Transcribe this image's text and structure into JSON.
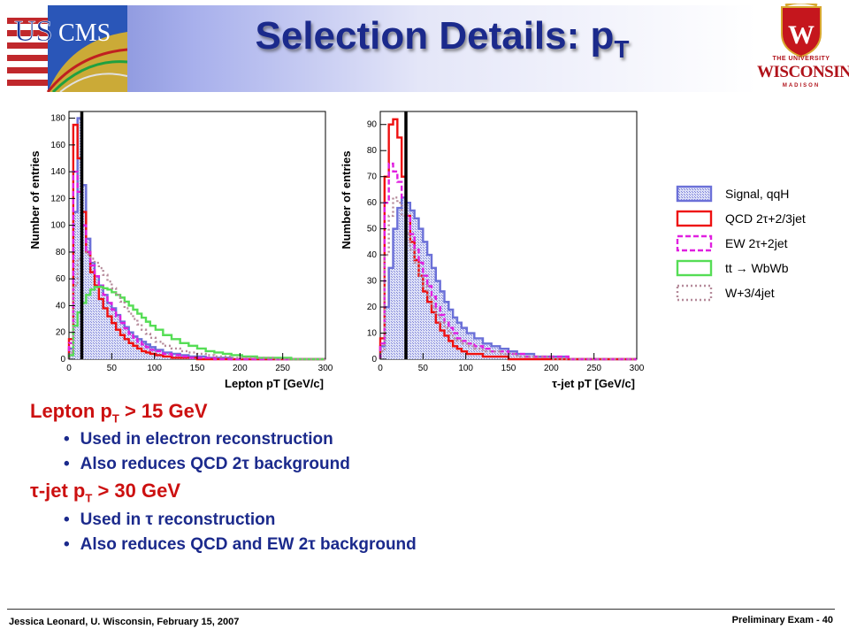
{
  "slide": {
    "title_main": "Selection Details: p",
    "title_sub": "T",
    "logo_left": "US CMS",
    "logo_right": {
      "line1": "THE UNIVERSITY",
      "line2": "WISCONSIN",
      "line3": "MADISON",
      "crest_letter": "W"
    }
  },
  "bullets": {
    "item1": {
      "text": "Lepton p",
      "sub": "T",
      "rest": " > 15 GeV"
    },
    "item1_sub1": "Used in electron reconstruction",
    "item1_sub2": "Also reduces QCD 2τ background",
    "item2": {
      "text": "τ-jet p",
      "sub": "T",
      "rest": " > 30 GeV"
    },
    "item2_sub1": "Used in τ reconstruction",
    "item2_sub2": "Also reduces QCD and EW 2τ background"
  },
  "footer": {
    "left": "Jessica Leonard, U. Wisconsin, February 15, 2007",
    "right": "Preliminary Exam -  40"
  },
  "colors": {
    "title": "#1b2a8c",
    "bullet_main": "#cc1010",
    "bullet_sub": "#1b2a8c",
    "signal": "#6b70d8",
    "qcd": "#ee1010",
    "ew": "#e020e0",
    "tt": "#55dd55",
    "w": "#b58a9a"
  },
  "chart_data": [
    {
      "type": "line",
      "xlabel": "Lepton p_T [GeV/c]",
      "ylabel": "Number of entries",
      "xlim": [
        0,
        300
      ],
      "ylim": [
        0,
        185
      ],
      "xticks": [
        0,
        50,
        100,
        150,
        200,
        250,
        300
      ],
      "yticks": [
        0,
        20,
        40,
        60,
        80,
        100,
        120,
        140,
        160,
        180
      ],
      "cut": 15,
      "x": [
        2.5,
        7.5,
        12.5,
        17.5,
        22.5,
        27.5,
        32.5,
        37.5,
        42.5,
        47.5,
        52.5,
        57.5,
        62.5,
        67.5,
        72.5,
        77.5,
        82.5,
        87.5,
        92.5,
        97.5,
        105,
        115,
        125,
        135,
        145,
        155,
        165,
        175,
        185,
        195,
        210,
        230,
        250,
        270,
        290
      ],
      "series": [
        {
          "name": "Signal, qqH",
          "values": [
            8,
            110,
            180,
            130,
            90,
            72,
            62,
            55,
            48,
            42,
            38,
            33,
            28,
            24,
            20,
            17,
            15,
            13,
            11,
            9,
            7,
            5,
            4,
            3,
            2,
            2,
            1,
            1,
            1,
            0,
            0,
            0,
            0,
            0,
            0
          ]
        },
        {
          "name": "QCD 2τ+2/3jet",
          "values": [
            15,
            175,
            150,
            110,
            80,
            65,
            55,
            45,
            38,
            32,
            27,
            22,
            18,
            15,
            12,
            10,
            8,
            6,
            5,
            4,
            3,
            2,
            1,
            1,
            1,
            0,
            0,
            0,
            0,
            0,
            0,
            0,
            0,
            0,
            0
          ]
        },
        {
          "name": "EW 2τ+2jet",
          "values": [
            12,
            140,
            125,
            100,
            80,
            70,
            62,
            55,
            48,
            42,
            37,
            32,
            27,
            23,
            19,
            16,
            13,
            11,
            9,
            7,
            6,
            4,
            3,
            2,
            1,
            1,
            1,
            0,
            0,
            0,
            0,
            0,
            0,
            0,
            0
          ]
        },
        {
          "name": "tt → WbWb",
          "values": [
            3,
            25,
            35,
            42,
            48,
            52,
            54,
            54,
            53,
            52,
            50,
            48,
            46,
            43,
            40,
            37,
            34,
            31,
            28,
            25,
            22,
            18,
            15,
            12,
            10,
            8,
            6,
            5,
            4,
            3,
            2,
            1,
            1,
            0,
            0
          ]
        },
        {
          "name": "W+3/4jet",
          "values": [
            5,
            55,
            75,
            80,
            78,
            75,
            72,
            68,
            63,
            58,
            53,
            48,
            43,
            38,
            34,
            30,
            26,
            22,
            19,
            16,
            13,
            10,
            8,
            6,
            5,
            4,
            3,
            2,
            2,
            1,
            1,
            1,
            0,
            0,
            0
          ]
        }
      ]
    },
    {
      "type": "line",
      "xlabel": "τ-jet p_T [GeV/c]",
      "ylabel": "Number of entries",
      "xlim": [
        0,
        300
      ],
      "ylim": [
        0,
        95
      ],
      "xticks": [
        0,
        50,
        100,
        150,
        200,
        250,
        300
      ],
      "yticks": [
        0,
        10,
        20,
        30,
        40,
        50,
        60,
        70,
        80,
        90
      ],
      "cut": 30,
      "x": [
        2.5,
        7.5,
        12.5,
        17.5,
        22.5,
        27.5,
        32.5,
        37.5,
        42.5,
        47.5,
        52.5,
        57.5,
        62.5,
        67.5,
        72.5,
        77.5,
        82.5,
        87.5,
        92.5,
        97.5,
        105,
        115,
        125,
        135,
        145,
        155,
        165,
        175,
        185,
        195,
        210,
        230,
        250,
        270,
        290
      ],
      "series": [
        {
          "name": "Signal, qqH",
          "values": [
            5,
            20,
            35,
            50,
            58,
            62,
            60,
            57,
            54,
            50,
            45,
            40,
            35,
            30,
            26,
            22,
            19,
            16,
            14,
            12,
            10,
            8,
            6,
            5,
            4,
            3,
            2,
            2,
            1,
            1,
            1,
            0,
            0,
            0,
            0
          ]
        },
        {
          "name": "QCD 2τ+2/3jet",
          "values": [
            8,
            70,
            90,
            92,
            85,
            70,
            55,
            45,
            38,
            32,
            26,
            22,
            18,
            14,
            11,
            9,
            7,
            5,
            4,
            3,
            2,
            2,
            1,
            1,
            1,
            0,
            0,
            0,
            0,
            0,
            0,
            0,
            0,
            0,
            0
          ]
        },
        {
          "name": "EW 2τ+2jet",
          "values": [
            6,
            60,
            75,
            72,
            68,
            62,
            55,
            48,
            42,
            37,
            32,
            28,
            24,
            20,
            17,
            14,
            12,
            10,
            8,
            7,
            6,
            5,
            4,
            3,
            3,
            2,
            2,
            1,
            1,
            1,
            1,
            0,
            0,
            0,
            0
          ]
        },
        {
          "name": "W+3/4jet",
          "values": [
            3,
            40,
            55,
            62,
            60,
            55,
            48,
            42,
            37,
            32,
            28,
            24,
            20,
            17,
            14,
            12,
            10,
            8,
            7,
            6,
            5,
            4,
            3,
            3,
            2,
            2,
            1,
            1,
            1,
            1,
            0,
            0,
            0,
            0,
            0
          ]
        }
      ]
    }
  ],
  "legend": [
    {
      "label": "Signal, qqH",
      "style": "hatch",
      "color": "#6b70d8"
    },
    {
      "label": "QCD 2τ+2/3jet",
      "style": "solid",
      "color": "#ee1010"
    },
    {
      "label": "EW 2τ+2jet",
      "style": "dashed",
      "color": "#e020e0"
    },
    {
      "label": "tt → WbWb",
      "style": "solid",
      "color": "#55dd55"
    },
    {
      "label": "W+3/4jet",
      "style": "dotted",
      "color": "#b58a9a"
    }
  ]
}
